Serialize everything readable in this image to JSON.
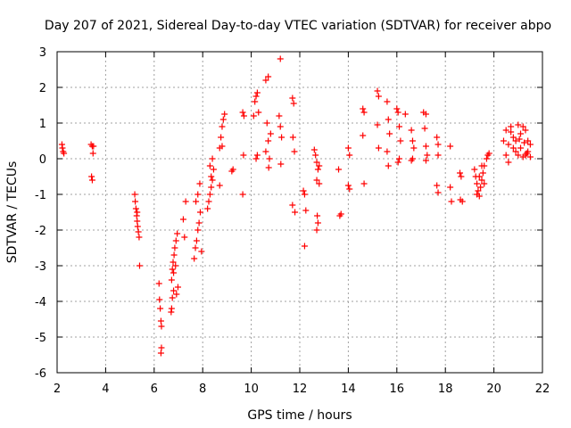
{
  "chart_data": {
    "type": "scatter",
    "title": "Day 207 of 2021, Sidereal Day-to-day VTEC variation (SDTVAR) for receiver abpo",
    "xlabel": "GPS time / hours",
    "ylabel": "SDTVAR / TECUs",
    "xlim": [
      2,
      22
    ],
    "ylim": [
      -6,
      3
    ],
    "x_ticks": [
      "2",
      "4",
      "6",
      "8",
      "10",
      "12",
      "14",
      "16",
      "18",
      "20",
      "22"
    ],
    "y_ticks": [
      "3",
      "2",
      "1",
      "0",
      "-1",
      "-2",
      "-3",
      "-4",
      "-5",
      "-6"
    ],
    "grid": true,
    "marker": "+",
    "color": "#ff0000",
    "series": [
      {
        "name": "SDTVAR",
        "points": [
          [
            2.2,
            0.4
          ],
          [
            2.22,
            0.3
          ],
          [
            2.25,
            0.2
          ],
          [
            2.28,
            0.15
          ],
          [
            3.4,
            0.4
          ],
          [
            3.45,
            0.35
          ],
          [
            3.5,
            0.35
          ],
          [
            3.48,
            0.15
          ],
          [
            3.42,
            -0.5
          ],
          [
            3.45,
            -0.6
          ],
          [
            5.2,
            -1.0
          ],
          [
            5.22,
            -1.2
          ],
          [
            5.25,
            -1.4
          ],
          [
            5.28,
            -1.6
          ],
          [
            5.3,
            -1.75
          ],
          [
            5.32,
            -1.9
          ],
          [
            5.35,
            -2.05
          ],
          [
            5.38,
            -2.2
          ],
          [
            5.3,
            -1.5
          ],
          [
            5.4,
            -3.0
          ],
          [
            6.2,
            -3.5
          ],
          [
            6.22,
            -3.95
          ],
          [
            6.25,
            -4.2
          ],
          [
            6.28,
            -4.55
          ],
          [
            6.3,
            -4.7
          ],
          [
            6.3,
            -5.3
          ],
          [
            6.28,
            -5.45
          ],
          [
            6.7,
            -4.3
          ],
          [
            6.72,
            -4.2
          ],
          [
            6.75,
            -3.9
          ],
          [
            6.8,
            -3.7
          ],
          [
            6.72,
            -3.4
          ],
          [
            6.75,
            -3.1
          ],
          [
            6.78,
            -2.9
          ],
          [
            6.82,
            -2.7
          ],
          [
            6.85,
            -2.5
          ],
          [
            6.9,
            -2.3
          ],
          [
            6.95,
            -2.1
          ],
          [
            6.88,
            -3.0
          ],
          [
            6.92,
            -3.8
          ],
          [
            6.98,
            -3.6
          ],
          [
            6.8,
            -3.2
          ],
          [
            7.2,
            -1.7
          ],
          [
            7.25,
            -2.2
          ],
          [
            7.3,
            -1.2
          ],
          [
            7.65,
            -2.8
          ],
          [
            7.7,
            -2.5
          ],
          [
            7.75,
            -2.3
          ],
          [
            7.8,
            -2.0
          ],
          [
            7.85,
            -1.8
          ],
          [
            7.9,
            -1.5
          ],
          [
            7.72,
            -1.2
          ],
          [
            7.8,
            -1.0
          ],
          [
            7.88,
            -0.7
          ],
          [
            7.95,
            -2.6
          ],
          [
            8.2,
            -1.4
          ],
          [
            8.25,
            -1.2
          ],
          [
            8.3,
            -1.0
          ],
          [
            8.35,
            -0.8
          ],
          [
            8.4,
            -0.6
          ],
          [
            8.45,
            -0.3
          ],
          [
            8.3,
            -0.2
          ],
          [
            8.4,
            0.0
          ],
          [
            8.35,
            -0.5
          ],
          [
            8.7,
            0.3
          ],
          [
            8.75,
            0.6
          ],
          [
            8.8,
            0.9
          ],
          [
            8.85,
            1.1
          ],
          [
            8.9,
            1.25
          ],
          [
            8.8,
            0.35
          ],
          [
            8.7,
            -0.75
          ],
          [
            9.2,
            -0.35
          ],
          [
            9.25,
            -0.3
          ],
          [
            9.65,
            1.3
          ],
          [
            9.7,
            1.2
          ],
          [
            9.68,
            0.1
          ],
          [
            9.65,
            -1.0
          ],
          [
            10.1,
            1.2
          ],
          [
            10.15,
            1.6
          ],
          [
            10.2,
            1.75
          ],
          [
            10.25,
            1.85
          ],
          [
            10.3,
            1.3
          ],
          [
            10.2,
            0.0
          ],
          [
            10.25,
            0.1
          ],
          [
            10.6,
            2.2
          ],
          [
            10.7,
            2.3
          ],
          [
            10.65,
            1.0
          ],
          [
            10.7,
            0.5
          ],
          [
            10.75,
            0.0
          ],
          [
            10.8,
            0.7
          ],
          [
            10.6,
            0.2
          ],
          [
            10.72,
            -0.25
          ],
          [
            11.2,
            2.8
          ],
          [
            11.15,
            1.2
          ],
          [
            11.2,
            0.9
          ],
          [
            11.25,
            0.6
          ],
          [
            11.22,
            -0.15
          ],
          [
            11.7,
            1.7
          ],
          [
            11.75,
            1.55
          ],
          [
            11.72,
            0.6
          ],
          [
            11.78,
            0.2
          ],
          [
            11.7,
            -1.3
          ],
          [
            11.8,
            -1.5
          ],
          [
            12.15,
            -0.9
          ],
          [
            12.2,
            -1.0
          ],
          [
            12.25,
            -1.45
          ],
          [
            12.2,
            -2.45
          ],
          [
            12.6,
            0.25
          ],
          [
            12.65,
            0.1
          ],
          [
            12.7,
            -0.1
          ],
          [
            12.75,
            -0.3
          ],
          [
            12.7,
            -0.6
          ],
          [
            12.8,
            -0.7
          ],
          [
            12.72,
            -1.6
          ],
          [
            12.75,
            -1.8
          ],
          [
            12.7,
            -2.0
          ],
          [
            12.8,
            -0.2
          ],
          [
            13.6,
            -0.3
          ],
          [
            13.65,
            -1.6
          ],
          [
            13.7,
            -1.55
          ],
          [
            14.0,
            0.3
          ],
          [
            14.05,
            0.1
          ],
          [
            14.0,
            -0.75
          ],
          [
            14.05,
            -0.85
          ],
          [
            14.6,
            1.4
          ],
          [
            14.65,
            1.3
          ],
          [
            14.6,
            0.65
          ],
          [
            14.65,
            -0.7
          ],
          [
            15.2,
            1.9
          ],
          [
            15.25,
            1.75
          ],
          [
            15.2,
            0.95
          ],
          [
            15.25,
            0.3
          ],
          [
            15.6,
            1.6
          ],
          [
            15.65,
            1.1
          ],
          [
            15.7,
            0.7
          ],
          [
            15.6,
            0.2
          ],
          [
            15.65,
            -0.2
          ],
          [
            16.0,
            1.4
          ],
          [
            16.05,
            1.3
          ],
          [
            16.1,
            0.9
          ],
          [
            16.15,
            0.5
          ],
          [
            16.1,
            0.0
          ],
          [
            16.05,
            -0.1
          ],
          [
            16.35,
            1.25
          ],
          [
            16.6,
            0.8
          ],
          [
            16.65,
            0.5
          ],
          [
            16.7,
            0.3
          ],
          [
            16.65,
            0.0
          ],
          [
            16.6,
            -0.05
          ],
          [
            17.1,
            1.3
          ],
          [
            17.2,
            1.25
          ],
          [
            17.15,
            0.85
          ],
          [
            17.2,
            0.35
          ],
          [
            17.25,
            0.1
          ],
          [
            17.2,
            -0.05
          ],
          [
            17.65,
            0.6
          ],
          [
            17.7,
            0.4
          ],
          [
            17.7,
            0.1
          ],
          [
            17.65,
            -0.75
          ],
          [
            17.7,
            -0.95
          ],
          [
            18.2,
            0.35
          ],
          [
            18.2,
            -0.8
          ],
          [
            18.25,
            -1.2
          ],
          [
            18.6,
            -0.4
          ],
          [
            18.65,
            -0.5
          ],
          [
            18.7,
            -1.2
          ],
          [
            18.62,
            -1.15
          ],
          [
            19.2,
            -0.3
          ],
          [
            19.25,
            -0.5
          ],
          [
            19.3,
            -0.7
          ],
          [
            19.35,
            -0.9
          ],
          [
            19.4,
            -1.05
          ],
          [
            19.45,
            -0.8
          ],
          [
            19.5,
            -0.6
          ],
          [
            19.55,
            -0.4
          ],
          [
            19.6,
            -0.2
          ],
          [
            19.7,
            0.0
          ],
          [
            19.75,
            0.1
          ],
          [
            19.8,
            0.15
          ],
          [
            19.3,
            -1.0
          ],
          [
            19.4,
            -0.5
          ],
          [
            19.5,
            -0.2
          ],
          [
            19.6,
            -0.7
          ],
          [
            20.4,
            0.5
          ],
          [
            20.5,
            0.8
          ],
          [
            20.6,
            0.4
          ],
          [
            20.7,
            0.9
          ],
          [
            20.8,
            0.6
          ],
          [
            20.9,
            0.5
          ],
          [
            21.0,
            0.95
          ],
          [
            21.1,
            0.7
          ],
          [
            21.2,
            0.9
          ],
          [
            21.3,
            0.8
          ],
          [
            21.4,
            0.5
          ],
          [
            21.5,
            0.4
          ],
          [
            20.5,
            0.1
          ],
          [
            20.6,
            -0.1
          ],
          [
            20.9,
            0.2
          ],
          [
            21.1,
            0.3
          ],
          [
            21.2,
            0.05
          ],
          [
            21.3,
            0.1
          ],
          [
            21.4,
            0.2
          ],
          [
            21.5,
            0.05
          ],
          [
            20.8,
            0.3
          ],
          [
            21.0,
            0.1
          ],
          [
            21.05,
            0.55
          ],
          [
            20.7,
            0.75
          ],
          [
            21.25,
            0.45
          ],
          [
            21.35,
            0.15
          ]
        ]
      }
    ]
  }
}
